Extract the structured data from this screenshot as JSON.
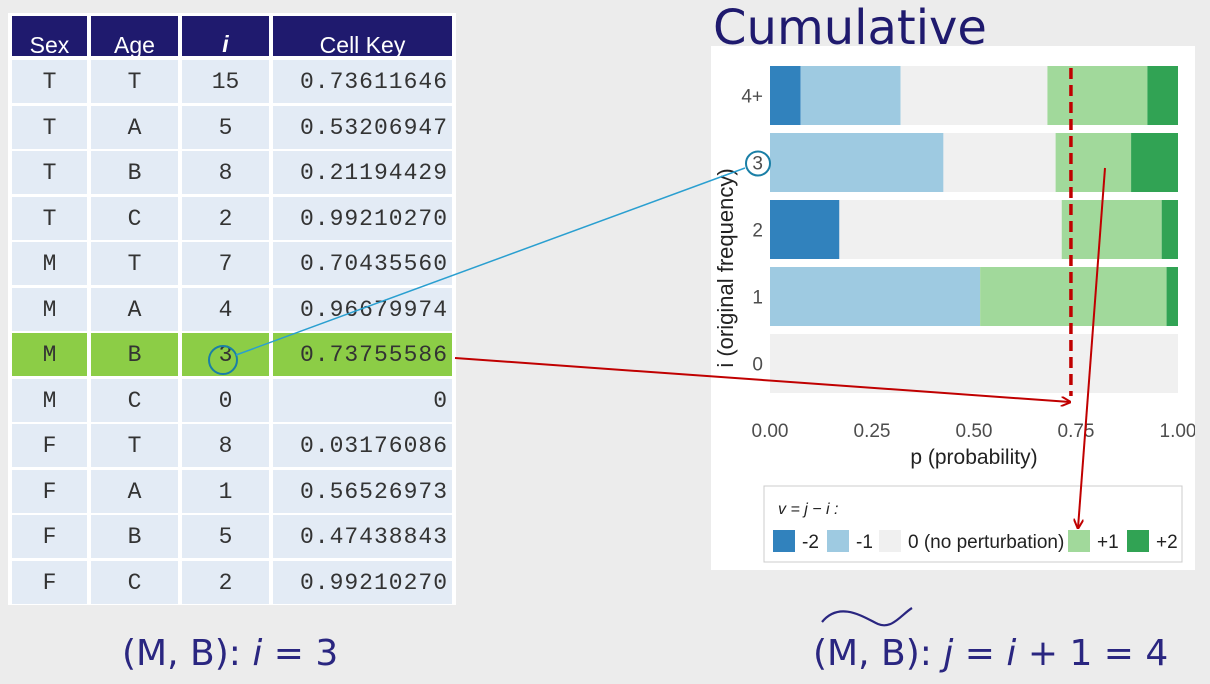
{
  "table": {
    "headers": [
      "Sex",
      "Age",
      "i",
      "Cell Key"
    ],
    "rows": [
      [
        "T",
        "T",
        "15",
        "0.73611646"
      ],
      [
        "T",
        "A",
        "5",
        "0.53206947"
      ],
      [
        "T",
        "B",
        "8",
        "0.21194429"
      ],
      [
        "T",
        "C",
        "2",
        "0.99210270"
      ],
      [
        "M",
        "T",
        "7",
        "0.70435560"
      ],
      [
        "M",
        "A",
        "4",
        "0.96679974"
      ],
      [
        "M",
        "B",
        "3",
        "0.73755586"
      ],
      [
        "M",
        "C",
        "0",
        "0"
      ],
      [
        "F",
        "T",
        "8",
        "0.03176086"
      ],
      [
        "F",
        "A",
        "1",
        "0.56526973"
      ],
      [
        "F",
        "B",
        "5",
        "0.47438843"
      ],
      [
        "F",
        "C",
        "2",
        "0.99210270"
      ]
    ],
    "highlighted_row": 6,
    "highlight_color": "#8ccd46",
    "header_color": "#1f1a6e"
  },
  "chart_title": "Cumulative",
  "chart_data": {
    "type": "bar",
    "orientation": "horizontal",
    "stacked": true,
    "xlabel": "p (probability)",
    "ylabel": "i (original frequency)",
    "xlim": [
      0,
      1
    ],
    "xticks": [
      "0.00",
      "0.25",
      "0.50",
      "0.75",
      "1.00"
    ],
    "categories": [
      "0",
      "1",
      "2",
      "3",
      "4+"
    ],
    "series": [
      {
        "name": "-2",
        "color": "#3182bd",
        "values": [
          0,
          0,
          0.17,
          0,
          0.075
        ]
      },
      {
        "name": "-1",
        "color": "#9ecae1",
        "values": [
          0,
          0.515,
          0,
          0.425,
          0.245
        ]
      },
      {
        "name": "0 (no perturbation)",
        "color": "#f0f0f0",
        "values": [
          1.0,
          0,
          0.545,
          0.275,
          0.36
        ]
      },
      {
        "name": "+1",
        "color": "#a1d99b",
        "values": [
          0,
          0.457,
          0.245,
          0.185,
          0.245
        ]
      },
      {
        "name": "+2",
        "color": "#31a354",
        "values": [
          0,
          0.028,
          0.04,
          0.115,
          0.075
        ]
      }
    ],
    "legend_title": "v = j − i :",
    "legend_position": "bottom",
    "reference_line_x": 0.7376,
    "reference_line_color": "#c00000"
  },
  "annotations": {
    "circled_value": "3",
    "caption_left": {
      "pre": "(M, B): ",
      "var": "i",
      "post": " = 3"
    },
    "caption_right": {
      "pre": "(M, B): ",
      "var1": "j",
      "mid": " = ",
      "var2": "i",
      "post": " + 1 = 4"
    }
  }
}
